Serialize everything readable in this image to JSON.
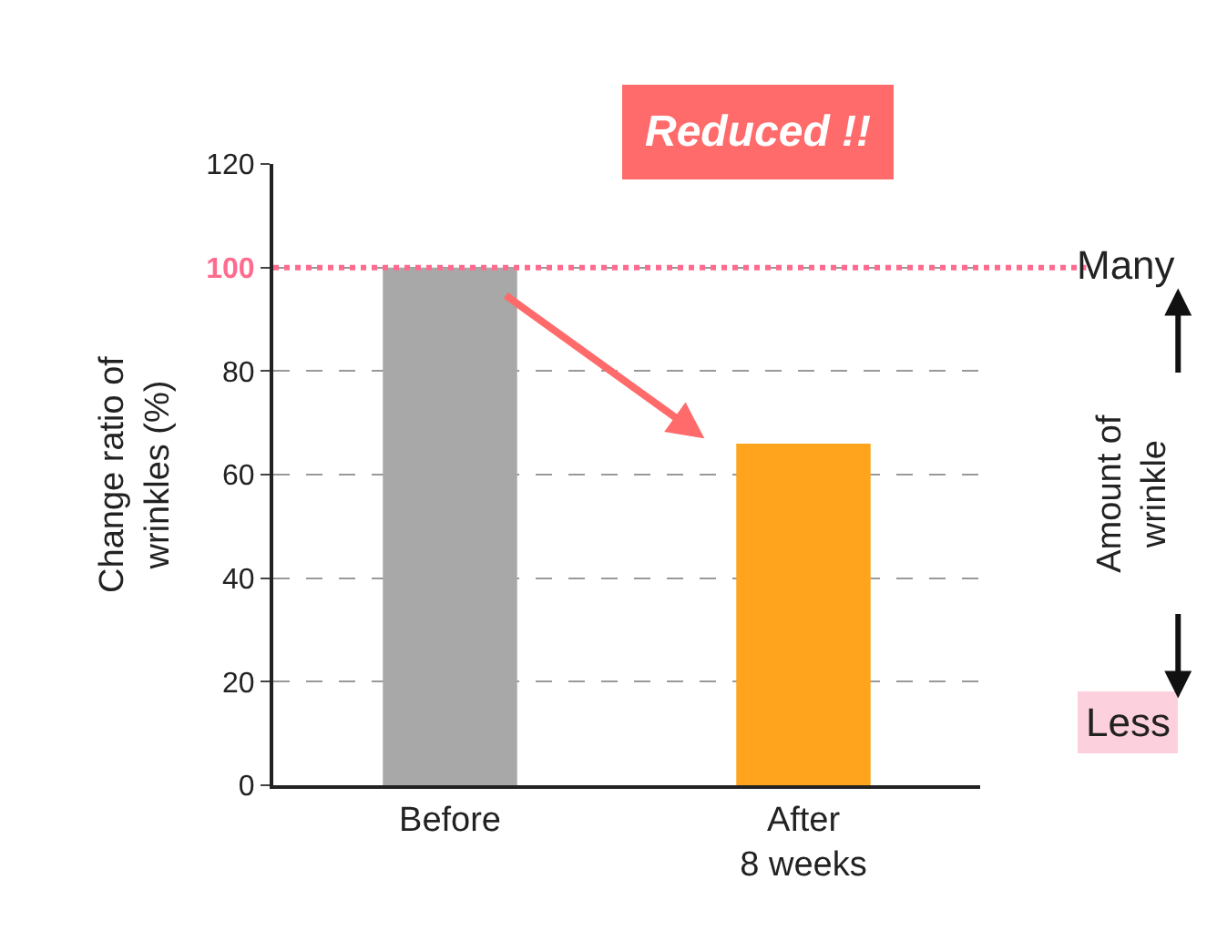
{
  "chart_data": {
    "type": "bar",
    "categories": [
      "Before",
      "After$^{}$ 8 weeks"
    ],
    "values": [
      100,
      66
    ],
    "colors": [
      "#a8a8a8",
      "#ffa41c"
    ],
    "ylabel": "Change ratio of wrinkles (%)",
    "ylim": [
      0,
      120
    ],
    "yticks": [
      0,
      20,
      40,
      60,
      80,
      100,
      120
    ],
    "grid": "y",
    "ref_lines": [
      {
        "axis": "y",
        "value": 100,
        "label": null,
        "color": "#ff6b8f",
        "line_style": "dotted"
      }
    ],
    "annotations": [
      "Reduced !!",
      "Many",
      "Amount of wrinkle",
      "Less"
    ]
  }
}
